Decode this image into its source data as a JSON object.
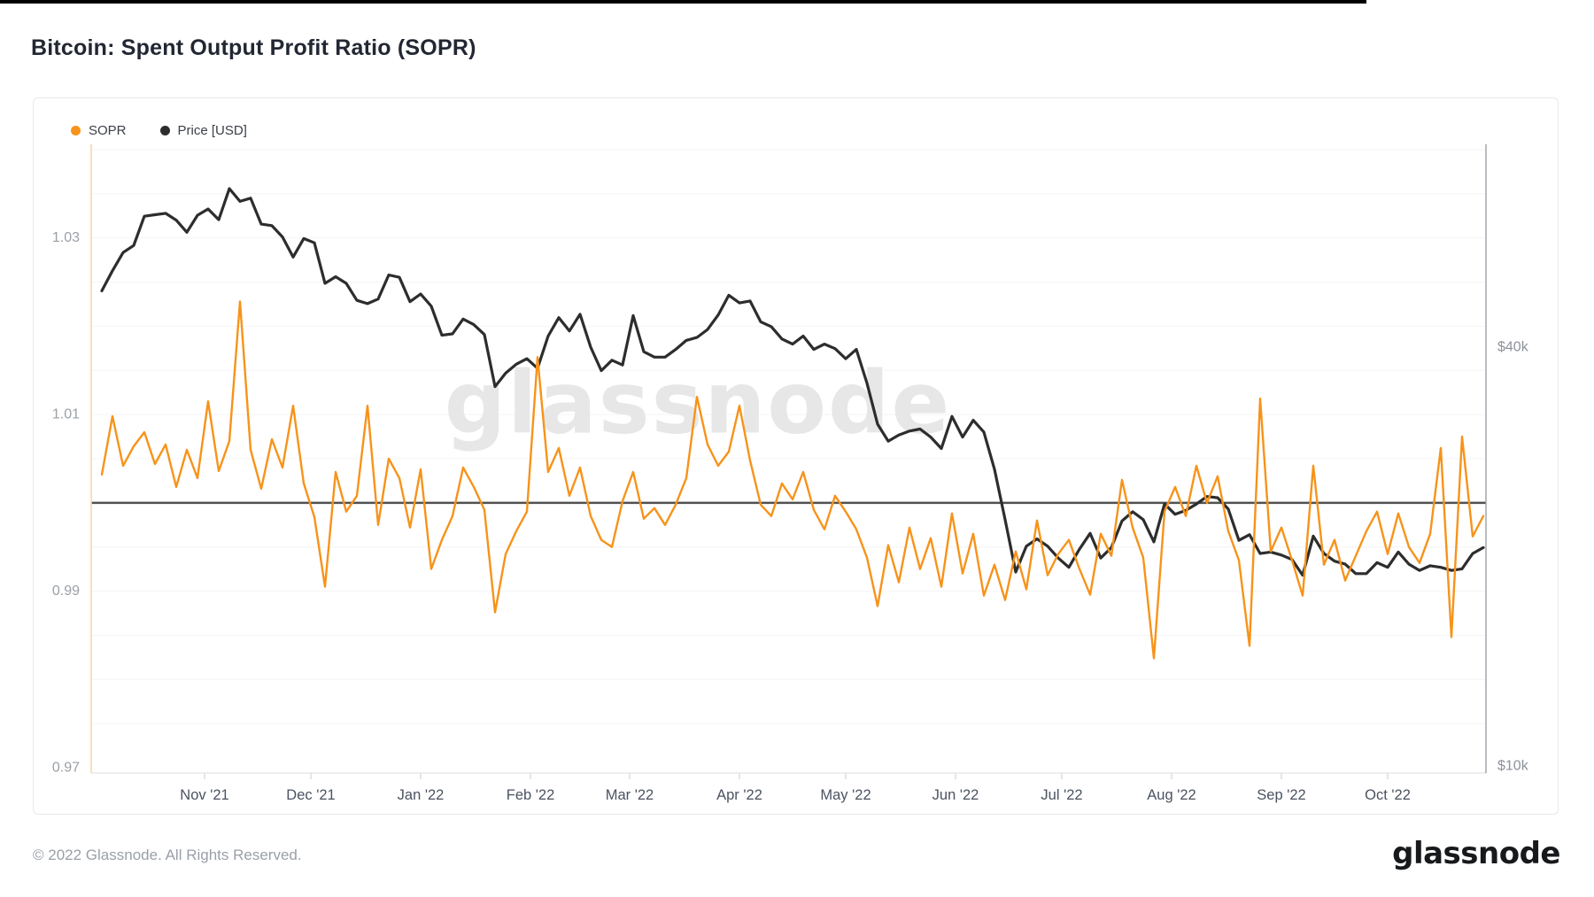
{
  "page": {
    "title": "Bitcoin: Spent Output Profit Ratio (SOPR)"
  },
  "legend": [
    {
      "label": "SOPR",
      "color": "#F7931A"
    },
    {
      "label": "Price [USD]",
      "color": "#2d2d2d"
    }
  ],
  "watermark": {
    "text": "glassnode",
    "color": "#e7e7e7"
  },
  "footer": {
    "copyright": "© 2022 Glassnode. All Rights Reserved.",
    "brand": "glassnode"
  },
  "chart_data": {
    "type": "line",
    "title": "Bitcoin: Spent Output Profit Ratio (SOPR)",
    "grid": true,
    "legend_position": "top-left",
    "x_axis": {
      "epoch": "2021-10-01",
      "domain_days": [
        -1,
        392.75
      ],
      "tick_days": [
        31,
        61,
        92,
        123,
        151,
        182,
        212,
        243,
        273,
        304,
        335,
        365
      ],
      "tick_labels": [
        "Nov '21",
        "Dec '21",
        "Jan '22",
        "Feb '22",
        "Mar '22",
        "Apr '22",
        "May '22",
        "Jun '22",
        "Jul '22",
        "Aug '22",
        "Sep '22",
        "Oct '22"
      ]
    },
    "left_axis": {
      "series": "SOPR",
      "scale": "linear",
      "domain": [
        0.9694,
        1.0406
      ],
      "tick_values": [
        1.03,
        1.01,
        0.99,
        0.97
      ],
      "tick_labels": [
        "1.03",
        "1.01",
        "0.99",
        "0.97"
      ],
      "grid_min": 0.975,
      "grid_max": 1.04,
      "grid_step": 0.005,
      "baseline": 1.0,
      "axis_line_color": "#f7d9ab"
    },
    "right_axis": {
      "series": "Price [USD]",
      "scale": "log",
      "domain": [
        9768,
        78270
      ],
      "tick_values": [
        40000,
        10000
      ],
      "tick_labels": [
        "$40k",
        "$10k"
      ],
      "axis_line_color": "#9aa0a6"
    },
    "days": [
      2,
      5,
      8,
      11,
      14,
      17,
      20,
      23,
      26,
      29,
      32,
      35,
      38,
      41,
      44,
      47,
      50,
      53,
      56,
      59,
      62,
      65,
      68,
      71,
      74,
      77,
      80,
      83,
      86,
      89,
      92,
      95,
      98,
      101,
      104,
      107,
      110,
      113,
      116,
      119,
      122,
      125,
      128,
      131,
      134,
      137,
      140,
      143,
      146,
      149,
      152,
      155,
      158,
      161,
      164,
      167,
      170,
      173,
      176,
      179,
      182,
      185,
      188,
      191,
      194,
      197,
      200,
      203,
      206,
      209,
      212,
      215,
      218,
      221,
      224,
      227,
      230,
      233,
      236,
      239,
      242,
      245,
      248,
      251,
      254,
      257,
      260,
      263,
      266,
      269,
      272,
      275,
      278,
      281,
      284,
      287,
      290,
      293,
      296,
      299,
      302,
      305,
      308,
      311,
      314,
      317,
      320,
      323,
      326,
      329,
      332,
      335,
      338,
      341,
      344,
      347,
      350,
      353,
      356,
      359,
      362,
      365,
      368,
      371,
      374,
      377,
      380,
      383,
      386,
      389,
      392
    ],
    "series": [
      {
        "name": "Price [USD]",
        "axis": "right",
        "color": "#2d2d2d",
        "stroke_width": 3.2,
        "values": [
          48200,
          51500,
          54700,
          56000,
          61700,
          62000,
          62300,
          60900,
          58500,
          61900,
          63200,
          61000,
          67600,
          64800,
          65500,
          60100,
          59800,
          57600,
          53900,
          57300,
          56500,
          49400,
          50500,
          49400,
          46700,
          46200,
          46900,
          50800,
          50400,
          46500,
          47700,
          45800,
          41600,
          41800,
          43900,
          43100,
          41700,
          35100,
          36700,
          37800,
          38500,
          37300,
          41500,
          44100,
          42200,
          44600,
          40000,
          37000,
          38300,
          37700,
          44400,
          39400,
          38700,
          38700,
          39700,
          40900,
          41300,
          42400,
          44500,
          47500,
          46300,
          46600,
          43500,
          42800,
          41100,
          40400,
          41500,
          39700,
          40400,
          39800,
          38500,
          39700,
          35500,
          31000,
          29300,
          29900,
          30300,
          30500,
          29700,
          28600,
          31800,
          29700,
          31400,
          30200,
          26700,
          22600,
          19000,
          20700,
          21200,
          20700,
          19900,
          19300,
          20500,
          21600,
          19900,
          20600,
          22500,
          23200,
          22600,
          21000,
          23800,
          23000,
          23300,
          23800,
          24400,
          24300,
          23400,
          21100,
          21500,
          20200,
          20300,
          20100,
          19800,
          18800,
          21400,
          20200,
          19700,
          19500,
          18900,
          18900,
          19600,
          19300,
          20300,
          19500,
          19100,
          19400,
          19300,
          19100,
          19200,
          20200,
          20600
        ]
      },
      {
        "name": "SOPR",
        "axis": "left",
        "color": "#F7931A",
        "stroke_width": 2.4,
        "values": [
          1.0032,
          1.0098,
          1.0042,
          1.0064,
          1.008,
          1.0044,
          1.0066,
          1.0018,
          1.006,
          1.0028,
          1.0115,
          1.0036,
          1.007,
          1.0228,
          1.006,
          1.0016,
          1.0072,
          1.004,
          1.011,
          1.0022,
          0.9984,
          0.9905,
          1.0035,
          0.999,
          1.0008,
          1.011,
          0.9975,
          1.005,
          1.0028,
          0.9972,
          1.0038,
          0.9925,
          0.9958,
          0.9985,
          1.004,
          1.0018,
          0.9992,
          0.9876,
          0.9942,
          0.9968,
          0.999,
          1.0165,
          1.0035,
          1.0062,
          1.0008,
          1.004,
          0.9985,
          0.9958,
          0.995,
          1.0002,
          1.0035,
          0.9982,
          0.9994,
          0.9975,
          0.9998,
          1.0028,
          1.012,
          1.0066,
          1.0042,
          1.0058,
          1.011,
          1.0048,
          0.9998,
          0.9985,
          1.0022,
          1.0004,
          1.0035,
          0.9992,
          0.997,
          1.0008,
          0.999,
          0.997,
          0.9938,
          0.9883,
          0.9952,
          0.991,
          0.9972,
          0.9925,
          0.996,
          0.9905,
          0.9988,
          0.992,
          0.9965,
          0.9895,
          0.993,
          0.989,
          0.9945,
          0.9902,
          0.998,
          0.9918,
          0.9942,
          0.9958,
          0.9925,
          0.9896,
          0.9965,
          0.994,
          1.0026,
          0.9972,
          0.9938,
          0.9824,
          0.999,
          1.0018,
          0.9985,
          1.0042,
          1.0,
          1.003,
          0.9968,
          0.9935,
          0.9838,
          1.0118,
          0.9945,
          0.9972,
          0.9935,
          0.9895,
          1.0042,
          0.993,
          0.9958,
          0.9912,
          0.994,
          0.9968,
          0.999,
          0.9942,
          0.9988,
          0.995,
          0.9932,
          0.9965,
          1.0062,
          0.9848,
          1.0075,
          0.9962,
          0.9985
        ]
      }
    ]
  }
}
